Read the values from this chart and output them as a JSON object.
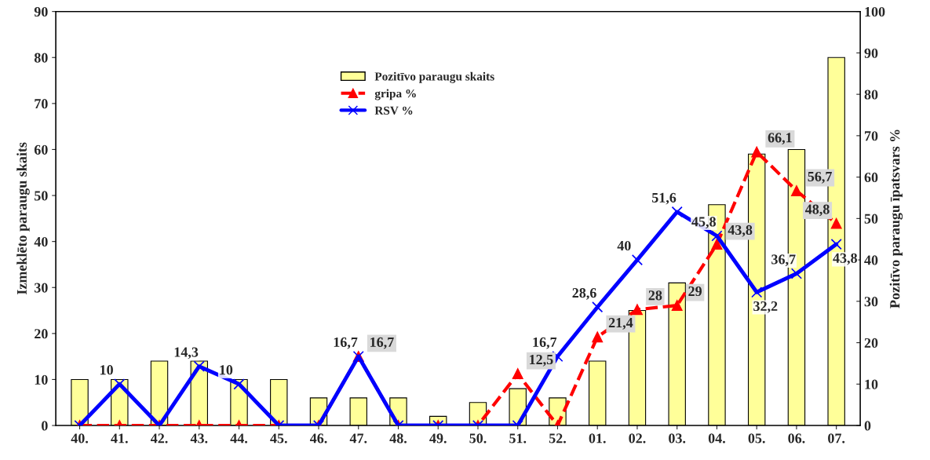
{
  "chart_data": {
    "type": "bar",
    "ylabel": "Izmeklēto paraugu skaits",
    "y2label": "Pozitīvo paraugu īpatsvars %",
    "categories": [
      "40.",
      "41.",
      "42.",
      "43.",
      "44.",
      "45.",
      "46.",
      "47.",
      "48.",
      "49.",
      "50.",
      "51.",
      "52.",
      "01.",
      "02.",
      "03.",
      "04.",
      "05.",
      "06.",
      "07."
    ],
    "series": [
      {
        "name": "Pozitīvo paraugu skaits",
        "color": "#ffff99",
        "values": [
          10,
          10,
          14,
          14,
          10,
          10,
          6,
          6,
          6,
          2,
          5,
          8,
          6,
          14,
          25,
          31,
          48,
          59,
          60,
          80
        ]
      },
      {
        "name": "gripa %",
        "type": "line",
        "axis": "y2",
        "color": "#ff0000",
        "marker": "triangle",
        "line_style": "dashed",
        "values": [
          0,
          0,
          0,
          0,
          0,
          0,
          0,
          16.7,
          0,
          0,
          0,
          12.5,
          0,
          21.4,
          28,
          29,
          43.8,
          66.1,
          56.7,
          48.8
        ],
        "value_labels": [
          null,
          null,
          null,
          null,
          null,
          null,
          null,
          "16,7",
          null,
          null,
          null,
          "12,5",
          null,
          "21,4",
          "28",
          "29",
          "43,8",
          "66,1",
          "56,7",
          "48,8"
        ]
      },
      {
        "name": "RSV %",
        "type": "line",
        "axis": "y2",
        "color": "#0000ff",
        "marker": "cross",
        "line_style": "solid",
        "values": [
          0,
          10,
          0,
          14.3,
          10,
          0,
          0,
          16.7,
          0,
          0,
          0,
          0,
          16.7,
          28.6,
          40,
          51.6,
          45.8,
          32.2,
          36.7,
          43.8
        ],
        "value_labels": [
          null,
          "10",
          null,
          "14,3",
          "10",
          null,
          null,
          "16,7",
          null,
          null,
          null,
          null,
          "16,7",
          "28,6",
          "40",
          "51,6",
          "45,8",
          "32,2",
          "36,7",
          "43,8"
        ]
      }
    ],
    "ylim": [
      0,
      90
    ],
    "yticks": [
      0,
      10,
      20,
      30,
      40,
      50,
      60,
      70,
      80,
      90
    ],
    "y2lim": [
      0,
      100
    ],
    "y2ticks": [
      0,
      10,
      20,
      30,
      40,
      50,
      60,
      70,
      80,
      90,
      100
    ],
    "grid": false,
    "legend": "top"
  }
}
